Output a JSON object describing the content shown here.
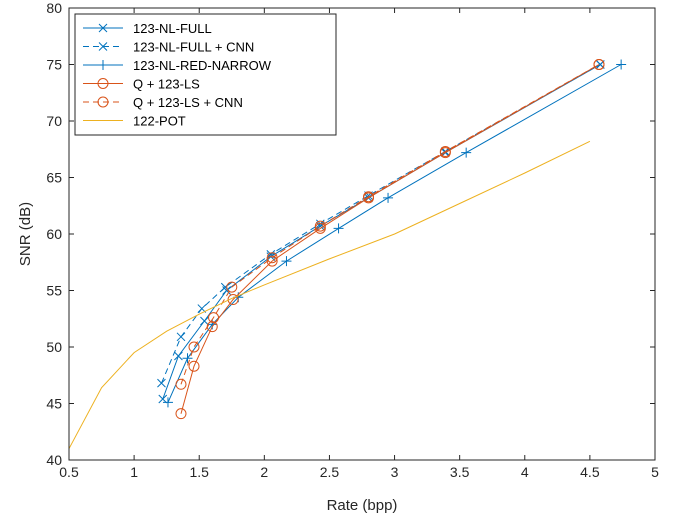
{
  "chart_data": {
    "type": "line",
    "xlabel": "Rate (bpp)",
    "ylabel": "SNR (dB)",
    "xlim": [
      0.5,
      5
    ],
    "ylim": [
      40,
      80
    ],
    "xticks": [
      0.5,
      1,
      1.5,
      2,
      2.5,
      3,
      3.5,
      4,
      4.5,
      5
    ],
    "yticks": [
      40,
      45,
      50,
      55,
      60,
      65,
      70,
      75,
      80
    ],
    "grid": false,
    "legend_position": "top-left",
    "series": [
      {
        "name": "123-NL-FULL",
        "color": "#0072bd",
        "dash": "solid",
        "marker": "x",
        "x": [
          1.22,
          1.34,
          1.54,
          1.71,
          2.05,
          2.43,
          2.8,
          3.39,
          4.58
        ],
        "y": [
          45.4,
          49.2,
          52.3,
          55.0,
          58.0,
          60.7,
          63.2,
          67.2,
          75.0
        ]
      },
      {
        "name": "123-NL-FULL + CNN",
        "color": "#0072bd",
        "dash": "dashed",
        "marker": "x",
        "x": [
          1.21,
          1.36,
          1.52,
          1.7,
          2.05,
          2.43,
          2.8,
          3.39,
          4.58
        ],
        "y": [
          46.8,
          50.9,
          53.4,
          55.3,
          58.2,
          60.9,
          63.4,
          67.3,
          75.0
        ]
      },
      {
        "name": "123-NL-RED-NARROW",
        "color": "#0072bd",
        "dash": "solid",
        "marker": "+",
        "x": [
          1.26,
          1.41,
          1.6,
          1.8,
          2.17,
          2.57,
          2.95,
          3.55,
          4.74
        ],
        "y": [
          45.1,
          49.0,
          52.0,
          54.4,
          57.6,
          60.5,
          63.2,
          67.2,
          75.0
        ]
      },
      {
        "name": "Q + 123-LS",
        "color": "#d95319",
        "dash": "solid",
        "marker": "o",
        "x": [
          1.36,
          1.46,
          1.6,
          1.76,
          2.06,
          2.43,
          2.8,
          3.39,
          4.57
        ],
        "y": [
          44.1,
          48.3,
          51.8,
          54.2,
          57.6,
          60.5,
          63.2,
          67.2,
          75.0
        ]
      },
      {
        "name": "Q + 123-LS + CNN",
        "color": "#d95319",
        "dash": "dashed",
        "marker": "o",
        "x": [
          1.36,
          1.46,
          1.61,
          1.75,
          2.06,
          2.43,
          2.8,
          3.39,
          4.57
        ],
        "y": [
          46.7,
          50.0,
          52.6,
          55.3,
          57.9,
          60.7,
          63.3,
          67.3,
          75.0
        ]
      },
      {
        "name": "122-POT",
        "color": "#edb120",
        "dash": "solid",
        "marker": "none",
        "x": [
          0.5,
          0.75,
          1.0,
          1.25,
          1.5,
          1.75,
          2.0,
          2.5,
          3.0,
          3.5,
          4.0,
          4.5
        ],
        "y": [
          41.0,
          46.4,
          49.5,
          51.4,
          52.9,
          54.3,
          55.5,
          57.8,
          60.0,
          62.7,
          65.4,
          68.2
        ]
      }
    ]
  }
}
